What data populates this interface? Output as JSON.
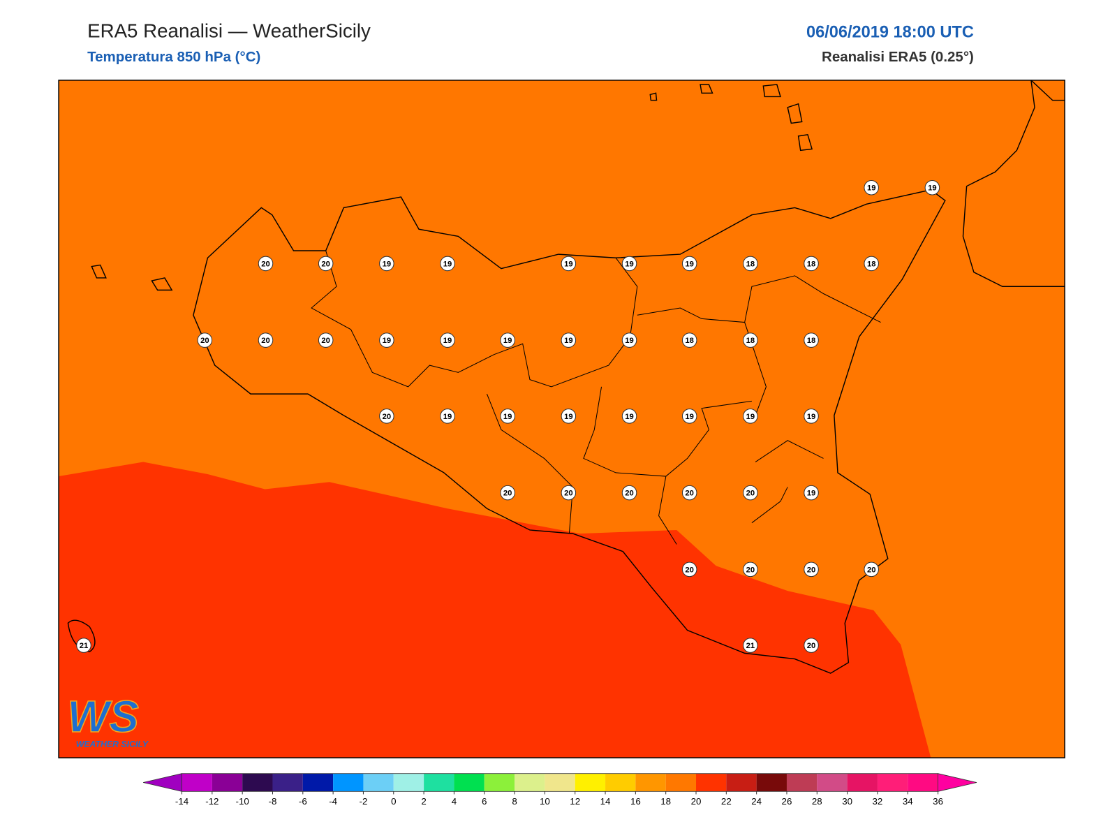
{
  "header": {
    "title": "ERA5 Reanalisi — WeatherSicily",
    "subtitle": "Temperatura 850 hPa (°C)",
    "datetime": "06/06/2019 18:00 UTC",
    "source": "Reanalisi ERA5 (0.25°)"
  },
  "map": {
    "fill_colors": [
      "#ff7700",
      "#ff3300"
    ],
    "stations": [
      19,
      19,
      20,
      20,
      19,
      19,
      19,
      19,
      19,
      18,
      18,
      18,
      20,
      20,
      20,
      19,
      19,
      19,
      19,
      19,
      18,
      18,
      18,
      20,
      19,
      19,
      19,
      19,
      19,
      19,
      19,
      20,
      20,
      20,
      20,
      20,
      19,
      20,
      20,
      20,
      20,
      21,
      21,
      20
    ]
  },
  "logo": {
    "text": "WS",
    "caption": "WEATHER SICILY"
  },
  "legend": {
    "ticks": [
      -14,
      -12,
      -10,
      -8,
      -6,
      -4,
      -2,
      0,
      2,
      4,
      6,
      8,
      10,
      12,
      14,
      16,
      18,
      20,
      22,
      24,
      26,
      28,
      30,
      32,
      34,
      36
    ],
    "colors": [
      "#c000c8",
      "#8a0096",
      "#2d0a50",
      "#3a2088",
      "#0019a8",
      "#0095ff",
      "#6ccff6",
      "#9ff0e6",
      "#1ee0a0",
      "#00e050",
      "#8cf03a",
      "#dcf08c",
      "#f0e68c",
      "#fff000",
      "#ffcc00",
      "#ff9600",
      "#ff7800",
      "#ff3300",
      "#c81e14",
      "#780a0a",
      "#be3c55",
      "#d24b87",
      "#e61464",
      "#ff1e78",
      "#ff0a82"
    ],
    "under_color": "#a000c0",
    "over_color": "#ff00a0"
  }
}
